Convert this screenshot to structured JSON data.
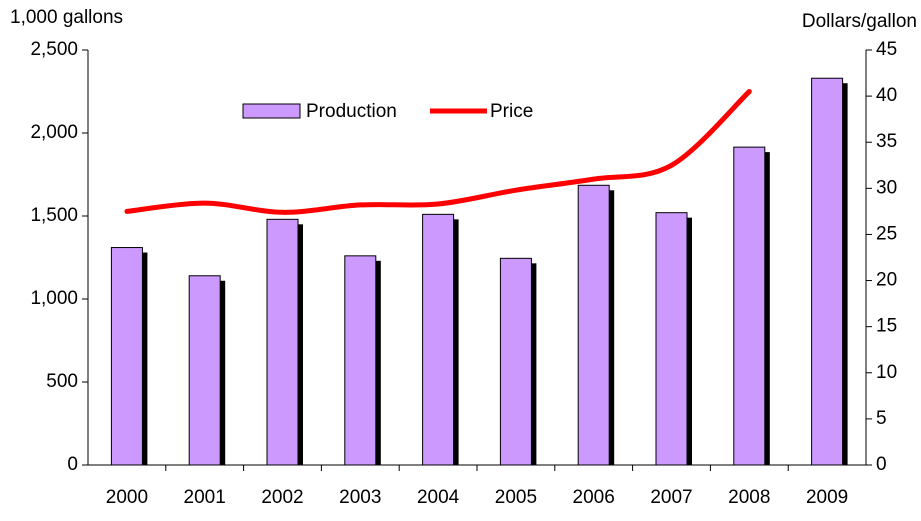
{
  "chart_data": {
    "type": "bar-line",
    "y_label": "1,000 gallons",
    "y2_label": "Dollars/gallon",
    "categories": [
      "2000",
      "2001",
      "2002",
      "2003",
      "2004",
      "2005",
      "2006",
      "2007",
      "2008",
      "2009"
    ],
    "series": [
      {
        "name": "Production",
        "type": "bar",
        "color": "#cc99ff",
        "values": [
          1310,
          1140,
          1480,
          1260,
          1510,
          1245,
          1685,
          1520,
          1915,
          2330
        ]
      },
      {
        "name": "Price",
        "type": "line",
        "color": "#ff0000",
        "axis": "y2",
        "values": [
          27.5,
          28.4,
          27.4,
          28.2,
          28.3,
          29.8,
          31.0,
          32.5,
          40.5,
          null
        ]
      }
    ],
    "ylim": [
      0,
      2500
    ],
    "yticks": [
      0,
      500,
      {
        "value": 1000,
        "label": "1,000"
      },
      {
        "value": 1500,
        "label": "1,500"
      },
      {
        "value": 2000,
        "label": "2,000"
      },
      {
        "value": 2500,
        "label": "2,500"
      }
    ],
    "y2lim": [
      0,
      45
    ],
    "y2ticks": [
      0,
      5,
      10,
      15,
      20,
      25,
      30,
      35,
      40,
      45
    ],
    "grid": false
  }
}
